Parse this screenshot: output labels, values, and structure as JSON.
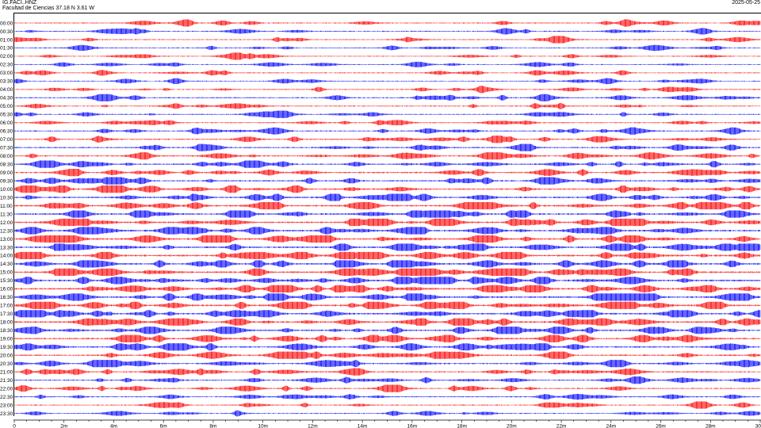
{
  "header": {
    "station": "IG.FACI..HNZ",
    "location": "Facultad de Ciencias  37.18 N 3.61 W",
    "date": "2025-05-25"
  },
  "chart_data": {
    "type": "line",
    "title": "",
    "xlabel": "",
    "ylabel": "",
    "xlim": [
      0,
      30
    ],
    "x_tick_labels": [
      "0",
      "2m",
      "4m",
      "6m",
      "8m",
      "10m",
      "12m",
      "14m",
      "16m",
      "18m",
      "20m",
      "22m",
      "24m",
      "26m",
      "28m",
      "30"
    ],
    "x_tick_values": [
      0,
      2,
      4,
      6,
      8,
      10,
      12,
      14,
      16,
      18,
      20,
      22,
      24,
      26,
      28,
      30
    ],
    "rows": [
      {
        "label": "00:00",
        "color": "#ff0000",
        "activity": 0.35
      },
      {
        "label": "00:30",
        "color": "#0000ff",
        "activity": 0.35
      },
      {
        "label": "01:00",
        "color": "#ff0000",
        "activity": 0.3
      },
      {
        "label": "01:30",
        "color": "#0000ff",
        "activity": 0.3
      },
      {
        "label": "02:00",
        "color": "#ff0000",
        "activity": 0.25
      },
      {
        "label": "02:30",
        "color": "#0000ff",
        "activity": 0.25
      },
      {
        "label": "03:00",
        "color": "#ff0000",
        "activity": 0.3
      },
      {
        "label": "03:30",
        "color": "#0000ff",
        "activity": 0.25
      },
      {
        "label": "04:00",
        "color": "#ff0000",
        "activity": 0.35
      },
      {
        "label": "04:30",
        "color": "#0000ff",
        "activity": 0.4
      },
      {
        "label": "05:00",
        "color": "#ff0000",
        "activity": 0.35
      },
      {
        "label": "05:30",
        "color": "#0000ff",
        "activity": 0.35
      },
      {
        "label": "06:00",
        "color": "#ff0000",
        "activity": 0.4
      },
      {
        "label": "06:30",
        "color": "#0000ff",
        "activity": 0.45
      },
      {
        "label": "07:00",
        "color": "#ff0000",
        "activity": 0.5
      },
      {
        "label": "07:30",
        "color": "#0000ff",
        "activity": 0.5
      },
      {
        "label": "08:00",
        "color": "#ff0000",
        "activity": 0.55
      },
      {
        "label": "08:30",
        "color": "#0000ff",
        "activity": 0.6
      },
      {
        "label": "09:00",
        "color": "#ff0000",
        "activity": 0.6
      },
      {
        "label": "09:30",
        "color": "#0000ff",
        "activity": 0.65
      },
      {
        "label": "10:00",
        "color": "#ff0000",
        "activity": 0.75
      },
      {
        "label": "10:30",
        "color": "#0000ff",
        "activity": 0.75
      },
      {
        "label": "11:00",
        "color": "#ff0000",
        "activity": 0.8
      },
      {
        "label": "11:30",
        "color": "#0000ff",
        "activity": 0.8
      },
      {
        "label": "12:00",
        "color": "#ff0000",
        "activity": 0.85
      },
      {
        "label": "12:30",
        "color": "#0000ff",
        "activity": 0.85
      },
      {
        "label": "13:00",
        "color": "#ff0000",
        "activity": 0.85
      },
      {
        "label": "13:30",
        "color": "#0000ff",
        "activity": 0.85
      },
      {
        "label": "14:00",
        "color": "#ff0000",
        "activity": 0.9
      },
      {
        "label": "14:30",
        "color": "#0000ff",
        "activity": 0.9
      },
      {
        "label": "15:00",
        "color": "#ff0000",
        "activity": 0.9
      },
      {
        "label": "15:30",
        "color": "#0000ff",
        "activity": 0.9
      },
      {
        "label": "16:00",
        "color": "#ff0000",
        "activity": 0.9
      },
      {
        "label": "16:30",
        "color": "#0000ff",
        "activity": 0.9
      },
      {
        "label": "17:00",
        "color": "#ff0000",
        "activity": 0.9
      },
      {
        "label": "17:30",
        "color": "#0000ff",
        "activity": 0.85
      },
      {
        "label": "18:00",
        "color": "#ff0000",
        "activity": 0.85
      },
      {
        "label": "18:30",
        "color": "#0000ff",
        "activity": 0.8
      },
      {
        "label": "19:00",
        "color": "#ff0000",
        "activity": 0.75
      },
      {
        "label": "19:30",
        "color": "#0000ff",
        "activity": 0.7
      },
      {
        "label": "20:00",
        "color": "#ff0000",
        "activity": 0.65
      },
      {
        "label": "20:30",
        "color": "#0000ff",
        "activity": 0.6
      },
      {
        "label": "21:00",
        "color": "#ff0000",
        "activity": 0.55
      },
      {
        "label": "21:30",
        "color": "#0000ff",
        "activity": 0.5
      },
      {
        "label": "22:00",
        "color": "#ff0000",
        "activity": 0.45
      },
      {
        "label": "22:30",
        "color": "#0000ff",
        "activity": 0.4
      },
      {
        "label": "23:00",
        "color": "#ff0000",
        "activity": 0.35
      },
      {
        "label": "23:30",
        "color": "#0000ff",
        "activity": 0.3
      }
    ]
  }
}
